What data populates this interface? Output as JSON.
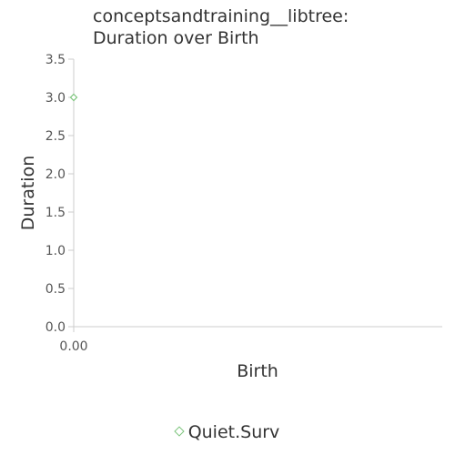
{
  "chart_data": {
    "type": "scatter",
    "title_line1": "conceptsandtraining__libtree:",
    "title_line2": "Duration over Birth",
    "xlabel": "Birth",
    "ylabel": "Duration",
    "x_ticks": [
      "0.00"
    ],
    "x_tick_values": [
      0
    ],
    "y_ticks": [
      "0.0",
      "0.5",
      "1.0",
      "1.5",
      "2.0",
      "2.5",
      "3.0",
      "3.5"
    ],
    "y_tick_values": [
      0,
      0.5,
      1.0,
      1.5,
      2.0,
      2.5,
      3.0,
      3.5
    ],
    "ylim": [
      0,
      3.5
    ],
    "xlim": [
      0,
      1
    ],
    "grid": false,
    "legend_position": "bottom-center",
    "series": [
      {
        "name": "Quiet.Surv",
        "color": "#7cc47c",
        "marker": "diamond",
        "points": [
          {
            "x": 0,
            "y": 3.0
          }
        ]
      }
    ]
  }
}
